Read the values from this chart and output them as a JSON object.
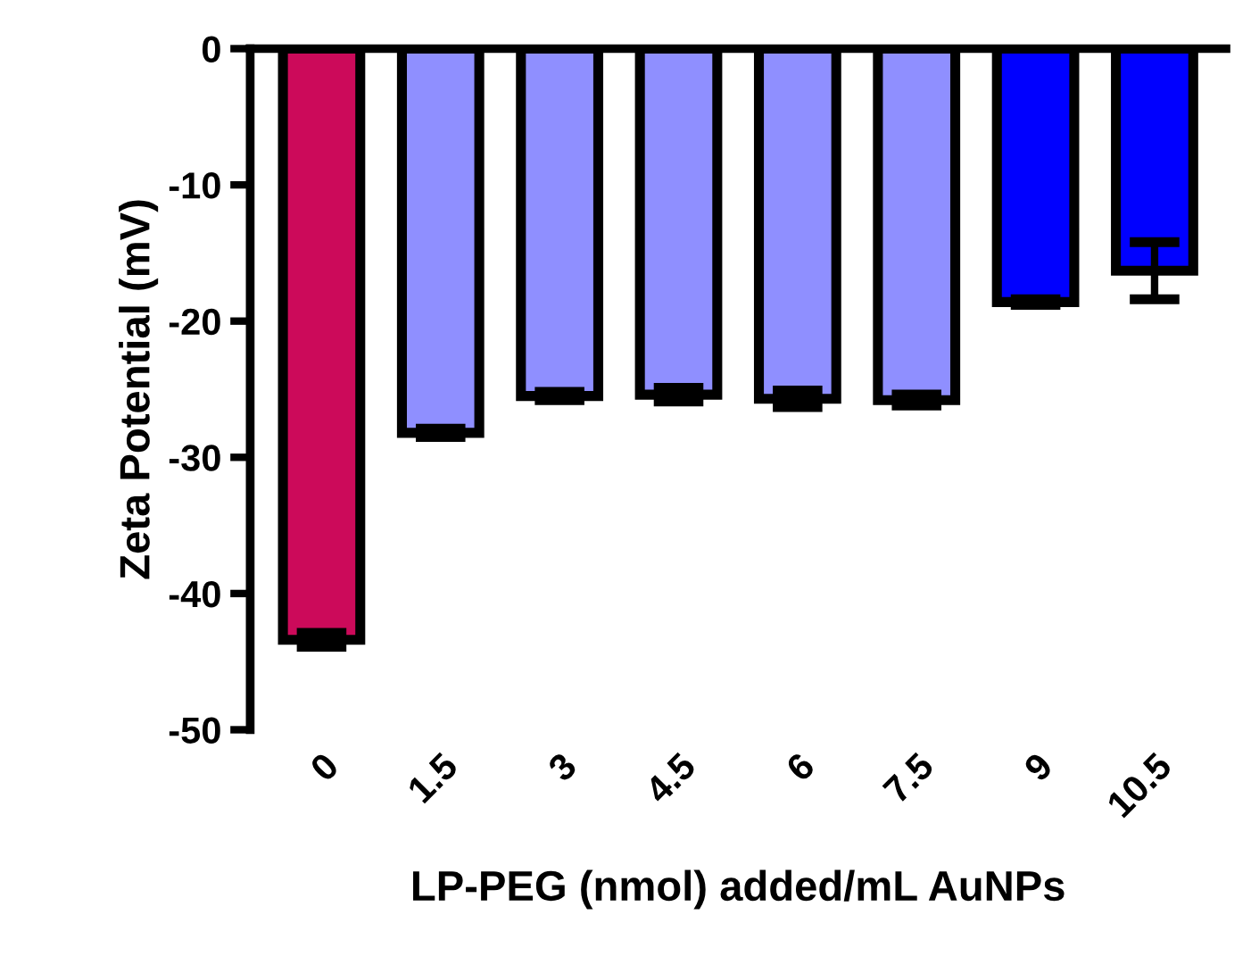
{
  "chart_data": {
    "type": "bar",
    "xlabel": "LP-PEG (nmol) added/mL AuNPs",
    "ylabel": "Zeta Potential (mV)",
    "categories": [
      "0",
      "1.5",
      "3",
      "4.5",
      "6",
      "7.5",
      "9",
      "10.5"
    ],
    "values": [
      -43.4,
      -28.2,
      -25.5,
      -25.4,
      -25.7,
      -25.8,
      -18.6,
      -16.3
    ],
    "errors": [
      0.5,
      0.3,
      0.3,
      0.5,
      0.6,
      0.4,
      0.2,
      2.1
    ],
    "colors": [
      "#cc0a5a",
      "#8f8fff",
      "#8f8fff",
      "#8f8fff",
      "#8f8fff",
      "#8f8fff",
      "#0000ff",
      "#0000ff"
    ],
    "ylim": [
      -50,
      0
    ],
    "yticks": [
      0,
      -10,
      -20,
      -30,
      -40,
      -50
    ],
    "grid": false,
    "legend": false
  }
}
